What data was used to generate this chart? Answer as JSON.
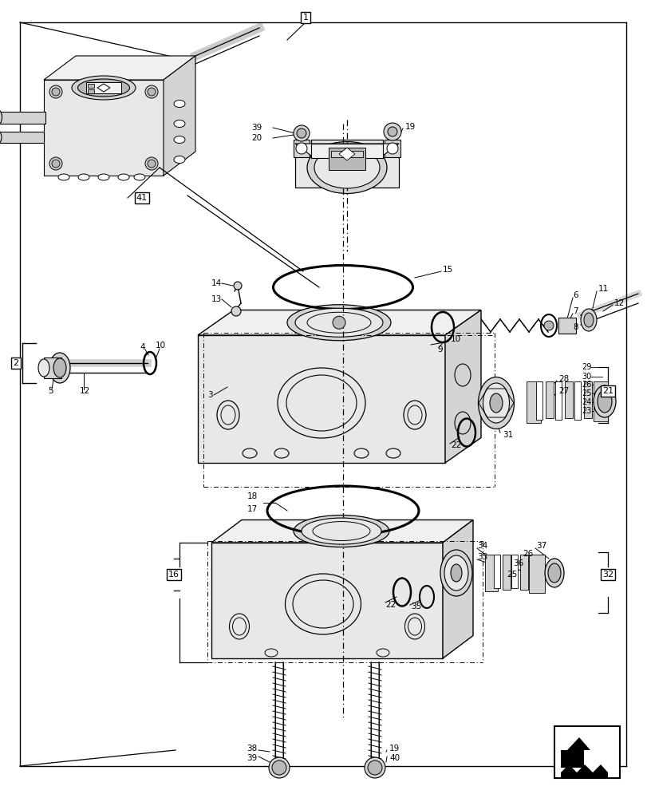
{
  "bg_color": "#ffffff",
  "lc": "#000000",
  "fig_width": 8.12,
  "fig_height": 10.0,
  "gray1": "#e8e8e8",
  "gray2": "#d4d4d4",
  "gray3": "#b8b8b8",
  "gray4": "#f0f0f0"
}
